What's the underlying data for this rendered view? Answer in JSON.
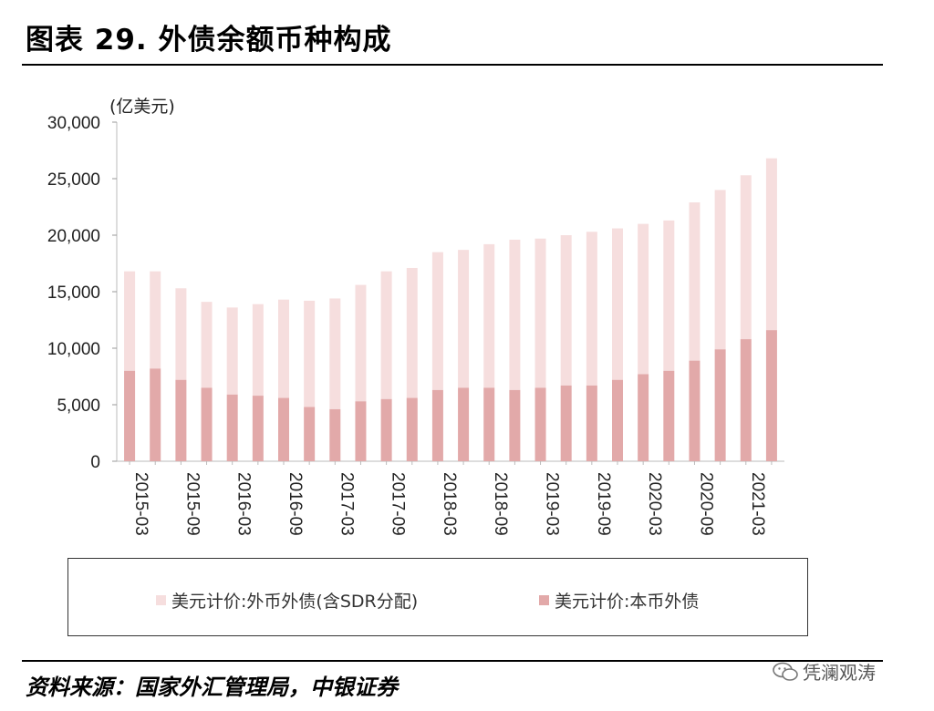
{
  "title": "图表 29. 外债余额币种构成",
  "source": "资料来源：国家外汇管理局，中银证券",
  "watermark": "凭澜观涛",
  "colors": {
    "foreign": "#f6dede",
    "local": "#e2a9a9"
  },
  "chart_data": {
    "type": "bar",
    "stacked": true,
    "unit_label": "(亿美元)",
    "ylim": [
      0,
      30000
    ],
    "yticks": [
      0,
      5000,
      10000,
      15000,
      20000,
      25000,
      30000
    ],
    "ytick_labels": [
      "0",
      "5,000",
      "10,000",
      "15,000",
      "20,000",
      "25,000",
      "30,000"
    ],
    "categories": [
      "2015-03",
      "2015-06",
      "2015-09",
      "2015-12",
      "2016-03",
      "2016-06",
      "2016-09",
      "2016-12",
      "2017-03",
      "2017-06",
      "2017-09",
      "2017-12",
      "2018-03",
      "2018-06",
      "2018-09",
      "2018-12",
      "2019-03",
      "2019-06",
      "2019-09",
      "2019-12",
      "2020-03",
      "2020-06",
      "2020-09",
      "2020-12",
      "2021-03",
      "2021-06"
    ],
    "xtick_labels": [
      "2015-03",
      "2015-09",
      "2016-03",
      "2016-09",
      "2017-03",
      "2017-09",
      "2018-03",
      "2018-09",
      "2019-03",
      "2019-09",
      "2020-03",
      "2020-09",
      "2021-03"
    ],
    "legend_position": "bottom",
    "series": [
      {
        "name": "美元计价:本币外债",
        "values": [
          8000,
          8200,
          7200,
          6500,
          5900,
          5800,
          5600,
          4800,
          4600,
          5300,
          5500,
          5600,
          6300,
          6500,
          6500,
          6300,
          6500,
          6700,
          6700,
          7200,
          7700,
          8000,
          8900,
          9900,
          10800,
          11600
        ]
      },
      {
        "name": "美元计价:外币外债(含SDR分配)",
        "values": [
          8800,
          8600,
          8100,
          7600,
          7700,
          8100,
          8700,
          9400,
          9800,
          10300,
          11300,
          11500,
          12200,
          12200,
          12700,
          13300,
          13200,
          13300,
          13600,
          13400,
          13300,
          13300,
          14000,
          14100,
          14500,
          15200
        ]
      }
    ]
  }
}
